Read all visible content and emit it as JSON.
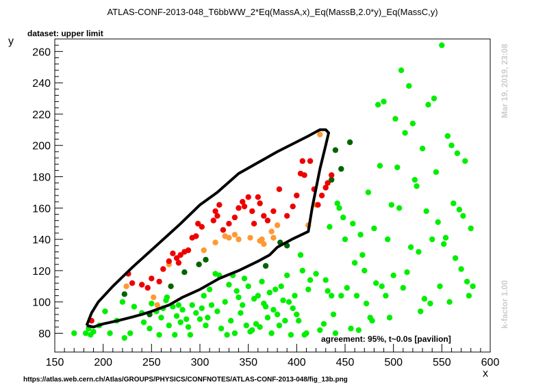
{
  "chart_data": {
    "type": "scatter",
    "title": "ATLAS-CONF-2013-048_T6bbWW_2*Eq(MassA,x)_Eq(MassB,2.0*y)_Eq(MassC,y)",
    "subtitle": "dataset: upper limit",
    "xlabel": "x",
    "ylabel": "y",
    "xlim": [
      150,
      600
    ],
    "ylim": [
      68,
      268
    ],
    "xticks": [
      150,
      200,
      250,
      300,
      350,
      400,
      450,
      500,
      550,
      600
    ],
    "yticks": [
      80,
      100,
      120,
      140,
      160,
      180,
      200,
      220,
      240,
      260
    ],
    "grid": false,
    "annotation": "agreement: 95%, t~0.0s [pavilion]",
    "timestamp": "Mar 19, 2019, 23:08",
    "kfactor": "k-factor 1.00",
    "source_url": "https://atlas.web.cern.ch/Atlas/GROUPS/PHYSICS/CONFNOTES/ATLAS-CONF-2013-048/fig_13b.png",
    "colors": {
      "bright_green": "#00ee00",
      "dark_green": "#006400",
      "orange": "#ff9933",
      "red": "#ee0000",
      "contour": "#000000"
    },
    "series": [
      {
        "color": "bright_green",
        "points": [
          [
            170,
            80
          ],
          [
            182,
            80
          ],
          [
            185,
            83
          ],
          [
            187,
            79
          ],
          [
            190,
            81
          ],
          [
            196,
            85
          ],
          [
            202,
            94
          ],
          [
            207,
            80
          ],
          [
            214,
            88
          ],
          [
            220,
            100
          ],
          [
            222,
            77
          ],
          [
            228,
            80
          ],
          [
            232,
            97
          ],
          [
            240,
            93
          ],
          [
            242,
            87
          ],
          [
            248,
            83
          ],
          [
            250,
            99
          ],
          [
            255,
            94
          ],
          [
            258,
            79
          ],
          [
            260,
            90
          ],
          [
            262,
            96
          ],
          [
            265,
            101
          ],
          [
            266,
            103
          ],
          [
            268,
            85
          ],
          [
            272,
            97
          ],
          [
            274,
            79
          ],
          [
            276,
            91
          ],
          [
            278,
            98
          ],
          [
            280,
            87
          ],
          [
            282,
            95
          ],
          [
            286,
            89
          ],
          [
            288,
            84
          ],
          [
            290,
            79
          ],
          [
            292,
            98
          ],
          [
            296,
            93
          ],
          [
            300,
            89
          ],
          [
            302,
            96
          ],
          [
            304,
            104
          ],
          [
            306,
            85
          ],
          [
            308,
            90
          ],
          [
            310,
            108
          ],
          [
            312,
            98
          ],
          [
            316,
            118
          ],
          [
            318,
            94
          ],
          [
            320,
            117
          ],
          [
            322,
            83
          ],
          [
            326,
            100
          ],
          [
            328,
            79
          ],
          [
            330,
            111
          ],
          [
            332,
            88
          ],
          [
            334,
            117
          ],
          [
            336,
            80
          ],
          [
            338,
            107
          ],
          [
            340,
            103
          ],
          [
            342,
            93
          ],
          [
            344,
            98
          ],
          [
            346,
            115
          ],
          [
            348,
            85
          ],
          [
            350,
            110
          ],
          [
            352,
            81
          ],
          [
            354,
            82
          ],
          [
            356,
            102
          ],
          [
            358,
            86
          ],
          [
            360,
            104
          ],
          [
            362,
            84
          ],
          [
            364,
            113
          ],
          [
            366,
            99
          ],
          [
            368,
            97
          ],
          [
            370,
            90
          ],
          [
            372,
            106
          ],
          [
            374,
            80
          ],
          [
            376,
            95
          ],
          [
            378,
            108
          ],
          [
            380,
            92
          ],
          [
            382,
            85
          ],
          [
            384,
            110
          ],
          [
            386,
            101
          ],
          [
            388,
            88
          ],
          [
            390,
            117
          ],
          [
            392,
            100
          ],
          [
            394,
            79
          ],
          [
            396,
            96
          ],
          [
            398,
            104
          ],
          [
            400,
            92
          ],
          [
            402,
            88
          ],
          [
            404,
            130
          ],
          [
            406,
            120
          ],
          [
            408,
            79
          ],
          [
            410,
            80
          ],
          [
            412,
            108
          ],
          [
            414,
            114
          ],
          [
            420,
            118
          ],
          [
            424,
            82
          ],
          [
            428,
            86
          ],
          [
            430,
            114
          ],
          [
            432,
            107
          ],
          [
            434,
            148
          ],
          [
            436,
            104
          ],
          [
            438,
            92
          ],
          [
            440,
            80
          ],
          [
            442,
            163
          ],
          [
            444,
            160
          ],
          [
            446,
            104
          ],
          [
            448,
            154
          ],
          [
            450,
            140
          ],
          [
            452,
            109
          ],
          [
            456,
            83
          ],
          [
            458,
            150
          ],
          [
            460,
            125
          ],
          [
            462,
            104
          ],
          [
            464,
            82
          ],
          [
            466,
            143
          ],
          [
            468,
            130
          ],
          [
            470,
            120
          ],
          [
            472,
            99
          ],
          [
            474,
            170
          ],
          [
            476,
            90
          ],
          [
            478,
            88
          ],
          [
            480,
            147
          ],
          [
            482,
            112
          ],
          [
            484,
            226
          ],
          [
            486,
            187
          ],
          [
            488,
            110
          ],
          [
            490,
            228
          ],
          [
            492,
            104
          ],
          [
            494,
            140
          ],
          [
            496,
            90
          ],
          [
            498,
            162
          ],
          [
            500,
            117
          ],
          [
            502,
            217
          ],
          [
            504,
            186
          ],
          [
            506,
            160
          ],
          [
            508,
            248
          ],
          [
            510,
            109
          ],
          [
            512,
            208
          ],
          [
            514,
            119
          ],
          [
            516,
            238
          ],
          [
            518,
            135
          ],
          [
            520,
            214
          ],
          [
            522,
            178
          ],
          [
            524,
            174
          ],
          [
            526,
            132
          ],
          [
            528,
            94
          ],
          [
            530,
            198
          ],
          [
            532,
            102
          ],
          [
            534,
            158
          ],
          [
            536,
            226
          ],
          [
            538,
            99
          ],
          [
            540,
            140
          ],
          [
            542,
            230
          ],
          [
            544,
            183
          ],
          [
            546,
            151
          ],
          [
            548,
            110
          ],
          [
            550,
            264
          ],
          [
            552,
            137
          ],
          [
            554,
            141
          ],
          [
            556,
            206
          ],
          [
            558,
            100
          ],
          [
            560,
            200
          ],
          [
            562,
            163
          ],
          [
            564,
            128
          ],
          [
            566,
            195
          ],
          [
            568,
            159
          ],
          [
            570,
            121
          ],
          [
            572,
            155
          ],
          [
            574,
            190
          ],
          [
            576,
            113
          ],
          [
            578,
            104
          ],
          [
            580,
            147
          ],
          [
            582,
            110
          ]
        ]
      },
      {
        "color": "dark_green",
        "points": [
          [
            222,
            105
          ],
          [
            248,
            92
          ],
          [
            270,
            110
          ],
          [
            284,
            119
          ],
          [
            299,
            124
          ],
          [
            306,
            127
          ],
          [
            368,
            123
          ],
          [
            383,
            138
          ],
          [
            390,
            136
          ],
          [
            436,
            178
          ],
          [
            440,
            197
          ],
          [
            446,
            185
          ],
          [
            455,
            202
          ]
        ]
      },
      {
        "color": "orange",
        "points": [
          [
            224,
            110
          ],
          [
            252,
            103
          ],
          [
            256,
            98
          ],
          [
            268,
            124
          ],
          [
            304,
            133
          ],
          [
            316,
            138
          ],
          [
            326,
            142
          ],
          [
            330,
            141
          ],
          [
            336,
            143
          ],
          [
            340,
            140
          ],
          [
            352,
            141
          ],
          [
            362,
            139
          ],
          [
            364,
            140
          ],
          [
            366,
            137
          ],
          [
            374,
            145
          ],
          [
            376,
            141
          ],
          [
            380,
            149
          ],
          [
            412,
            149
          ],
          [
            420,
            162
          ],
          [
            424,
            207
          ]
        ]
      },
      {
        "color": "red",
        "points": [
          [
            188,
            88
          ],
          [
            226,
            118
          ],
          [
            230,
            112
          ],
          [
            240,
            111
          ],
          [
            246,
            109
          ],
          [
            250,
            115
          ],
          [
            258,
            113
          ],
          [
            262,
            121
          ],
          [
            268,
            126
          ],
          [
            272,
            131
          ],
          [
            276,
            128
          ],
          [
            278,
            125
          ],
          [
            280,
            130
          ],
          [
            284,
            132
          ],
          [
            288,
            133
          ],
          [
            292,
            141
          ],
          [
            296,
            142
          ],
          [
            298,
            150
          ],
          [
            302,
            148
          ],
          [
            314,
            152
          ],
          [
            316,
            158
          ],
          [
            318,
            155
          ],
          [
            320,
            162
          ],
          [
            324,
            146
          ],
          [
            330,
            150
          ],
          [
            336,
            154
          ],
          [
            340,
            160
          ],
          [
            344,
            164
          ],
          [
            346,
            161
          ],
          [
            350,
            167
          ],
          [
            354,
            158
          ],
          [
            356,
            150
          ],
          [
            360,
            167
          ],
          [
            362,
            163
          ],
          [
            366,
            155
          ],
          [
            370,
            152
          ],
          [
            376,
            158
          ],
          [
            382,
            172
          ],
          [
            390,
            155
          ],
          [
            396,
            161
          ],
          [
            400,
            168
          ],
          [
            404,
            182
          ],
          [
            406,
            190
          ],
          [
            408,
            181
          ],
          [
            414,
            190
          ],
          [
            418,
            172
          ],
          [
            422,
            162
          ],
          [
            426,
            168
          ],
          [
            430,
            173
          ],
          [
            432,
            176
          ],
          [
            436,
            181
          ]
        ]
      }
    ],
    "contour": [
      [
        183,
        85
      ],
      [
        188,
        93
      ],
      [
        195,
        100
      ],
      [
        210,
        110
      ],
      [
        230,
        122
      ],
      [
        255,
        136
      ],
      [
        280,
        150
      ],
      [
        300,
        162
      ],
      [
        318,
        170
      ],
      [
        340,
        182
      ],
      [
        380,
        196
      ],
      [
        412,
        206
      ],
      [
        424,
        210
      ],
      [
        430,
        210
      ],
      [
        433,
        208
      ],
      [
        430,
        200
      ],
      [
        424,
        185
      ],
      [
        416,
        160
      ],
      [
        412,
        145
      ],
      [
        395,
        140
      ],
      [
        380,
        135
      ],
      [
        372,
        130
      ],
      [
        360,
        126
      ],
      [
        340,
        120
      ],
      [
        320,
        115
      ],
      [
        300,
        108
      ],
      [
        282,
        103
      ],
      [
        268,
        98
      ],
      [
        250,
        94
      ],
      [
        240,
        92
      ],
      [
        228,
        90
      ],
      [
        215,
        88
      ],
      [
        200,
        86
      ],
      [
        190,
        84
      ],
      [
        183,
        85
      ]
    ]
  }
}
